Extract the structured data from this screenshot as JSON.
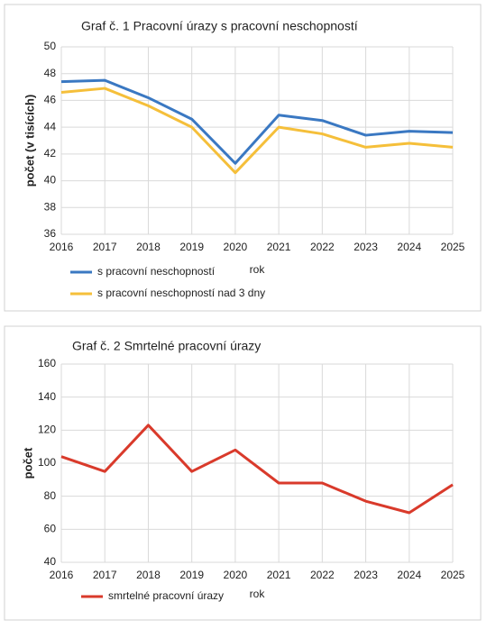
{
  "chart_data": [
    {
      "type": "line",
      "title": "Graf č. 1 Pracovní úrazy s pracovní neschopností",
      "x_label": "rok",
      "y_label": "počet (v tisících)",
      "categories": [
        "2016",
        "2017",
        "2018",
        "2019",
        "2020",
        "2021",
        "2022",
        "2023",
        "2024",
        "2025"
      ],
      "series": [
        {
          "name": "s pracovní neschopností",
          "color": "#3a78c2",
          "values": [
            47.4,
            47.5,
            46.2,
            44.6,
            41.3,
            44.9,
            44.5,
            43.4,
            43.7,
            43.6
          ]
        },
        {
          "name": "s pracovní neschopností nad 3 dny",
          "color": "#f5bf3a",
          "values": [
            46.6,
            46.9,
            45.6,
            44.0,
            40.6,
            44.0,
            43.5,
            42.5,
            42.8,
            42.5
          ]
        }
      ],
      "ylim": [
        36,
        50
      ],
      "yticks": [
        36,
        38,
        40,
        42,
        44,
        46,
        48,
        50
      ],
      "grid": true,
      "legend": "bottom-left"
    },
    {
      "type": "line",
      "title": "Graf č. 2 Smrtelné pracovní úrazy",
      "x_label": "rok",
      "y_label": "počet",
      "categories": [
        "2016",
        "2017",
        "2018",
        "2019",
        "2020",
        "2021",
        "2022",
        "2023",
        "2024",
        "2025"
      ],
      "series": [
        {
          "name": "smrtelné pracovní úrazy",
          "color": "#d93a2b",
          "values": [
            104,
            95,
            123,
            95,
            108,
            88,
            88,
            77,
            70,
            87
          ]
        }
      ],
      "ylim": [
        40,
        160
      ],
      "yticks": [
        40,
        60,
        80,
        100,
        120,
        140,
        160
      ],
      "grid": true,
      "legend": "bottom-left"
    }
  ]
}
